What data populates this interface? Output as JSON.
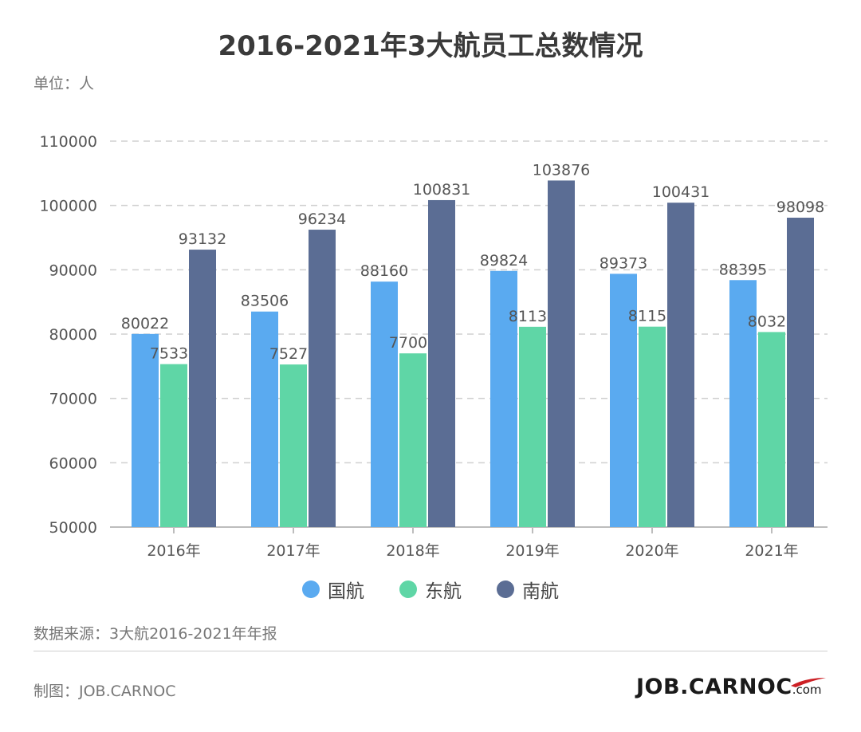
{
  "title": "2016-2021年3大航员工总数情况",
  "unit_label": "单位：人",
  "source_label": "数据来源：3大航2016-2021年年报",
  "maker_label": "制图：JOB.CARNOC",
  "logo": {
    "text": "JOB.CARNOC",
    "suffix": ".com",
    "accent_color": "#cc1f24"
  },
  "chart_data": {
    "type": "bar",
    "categories": [
      "2016年",
      "2017年",
      "2018年",
      "2019年",
      "2020年",
      "2021年"
    ],
    "series": [
      {
        "name": "国航",
        "color": "#5aaaf0",
        "values": [
          80022,
          83506,
          88160,
          89824,
          89373,
          88395
        ]
      },
      {
        "name": "东航",
        "color": "#5fd6a6",
        "values": [
          75333,
          75277,
          77005,
          81136,
          81157,
          80321
        ]
      },
      {
        "name": "南航",
        "color": "#5b6d94",
        "values": [
          93132,
          96234,
          100831,
          103876,
          100431,
          98098
        ]
      }
    ],
    "ylim": [
      50000,
      110000
    ],
    "yticks": [
      50000,
      60000,
      70000,
      80000,
      90000,
      100000,
      110000
    ],
    "grid": true,
    "legend_position": "bottom"
  }
}
